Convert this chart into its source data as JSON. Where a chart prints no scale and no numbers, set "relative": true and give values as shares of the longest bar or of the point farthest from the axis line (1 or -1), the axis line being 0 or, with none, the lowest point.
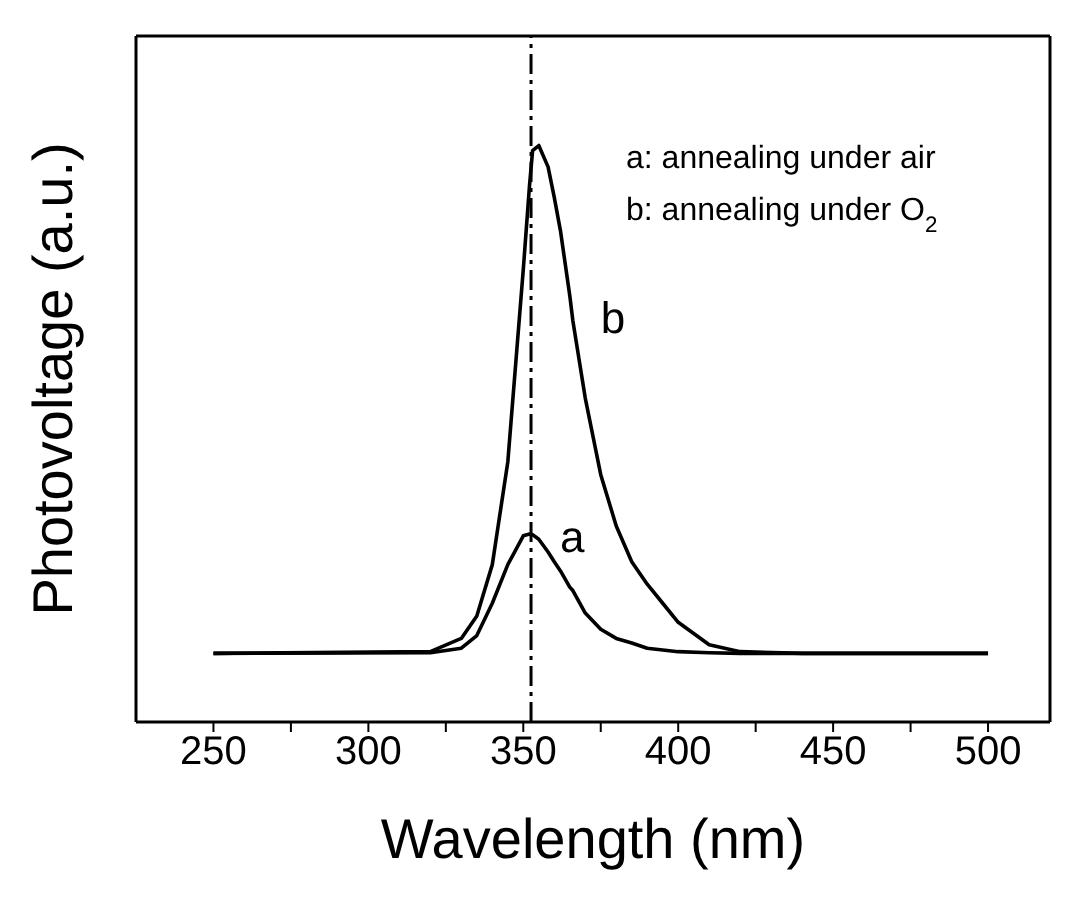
{
  "chart_data": {
    "type": "line",
    "relative": true,
    "xlabel": "Wavelength (nm)",
    "ylabel": "Photovoltage (a.u.)",
    "x": [
      250,
      320,
      330,
      335,
      340,
      345,
      350,
      352,
      353,
      355,
      358,
      360,
      362,
      365,
      366,
      370,
      375,
      380,
      385,
      390,
      395,
      400,
      410,
      420,
      440,
      500
    ],
    "series": [
      {
        "name": "b",
        "color": "#000000",
        "values": [
          0.119,
          0.122,
          0.145,
          0.184,
          0.273,
          0.451,
          0.785,
          0.93,
          0.991,
          1.0,
          0.963,
          0.91,
          0.852,
          0.74,
          0.696,
          0.562,
          0.429,
          0.34,
          0.278,
          0.239,
          0.206,
          0.173,
          0.134,
          0.122,
          0.119,
          0.119
        ]
      },
      {
        "name": "a",
        "color": "#000000",
        "values": [
          0.119,
          0.12,
          0.128,
          0.15,
          0.206,
          0.273,
          0.323,
          0.326,
          0.325,
          0.317,
          0.295,
          0.278,
          0.262,
          0.234,
          0.228,
          0.189,
          0.161,
          0.145,
          0.137,
          0.128,
          0.125,
          0.122,
          0.12,
          0.119,
          0.119,
          0.119
        ]
      }
    ],
    "xlim": [
      225,
      520
    ],
    "xticks": [
      250,
      {
        "value": 275,
        "label": null
      },
      300,
      {
        "value": 325,
        "label": null
      },
      350,
      {
        "value": 375,
        "label": null
      },
      400,
      {
        "value": 425,
        "label": null
      },
      450,
      {
        "value": 475,
        "label": null
      },
      500
    ],
    "ref_lines": [
      {
        "axis": "x",
        "value": 352.5,
        "line_style": "dashdot",
        "color": "#000000"
      }
    ],
    "annotations": [
      "a: annealing under air",
      "b: annealing under O$_{2}$"
    ],
    "marker": "none",
    "line_style": "solid"
  }
}
